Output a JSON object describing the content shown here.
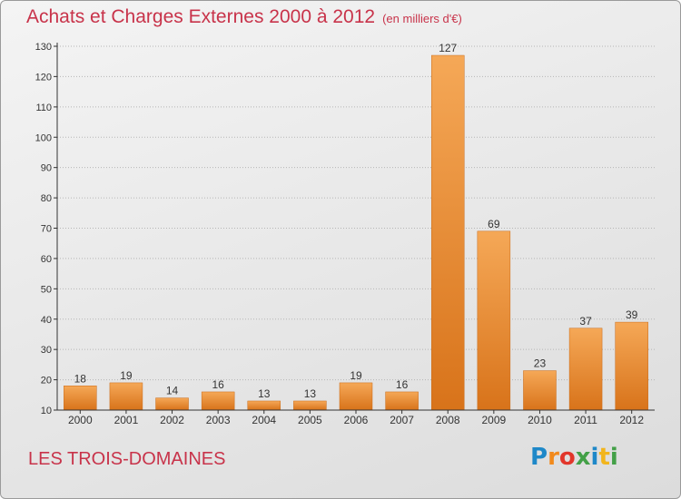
{
  "title": "Achats et Charges Externes 2000 à 2012",
  "unit": "(en milliers d'€)",
  "commune": "LES TROIS-DOMAINES",
  "logo": {
    "text": "Proxiti",
    "colors": [
      "#1e88c8",
      "#f28a1c",
      "#e2362b",
      "#43a047",
      "#1e88c8",
      "#f2b51c",
      "#43a047"
    ]
  },
  "colors": {
    "title": "#c8334a",
    "bar_light": "#f5a857",
    "bar_dark": "#d8731a",
    "grid": "#b5b5b5"
  },
  "chart_data": {
    "type": "bar",
    "title": "Achats et Charges Externes 2000 à 2012",
    "categories": [
      "2000",
      "2001",
      "2002",
      "2003",
      "2004",
      "2005",
      "2006",
      "2007",
      "2008",
      "2009",
      "2010",
      "2011",
      "2012"
    ],
    "values": [
      18,
      19,
      14,
      16,
      13,
      13,
      19,
      16,
      127,
      69,
      23,
      37,
      39
    ],
    "data_labels": [
      "18",
      "19",
      "14",
      "16",
      "13",
      "13",
      "19",
      "16",
      "127",
      "69",
      "23",
      "37",
      "39"
    ],
    "ylim": [
      10,
      130
    ],
    "yticks": [
      "10",
      "20",
      "30",
      "40",
      "50",
      "60",
      "70",
      "80",
      "90",
      "100",
      "110",
      "120",
      "130"
    ],
    "grid": true,
    "legend": "none"
  }
}
